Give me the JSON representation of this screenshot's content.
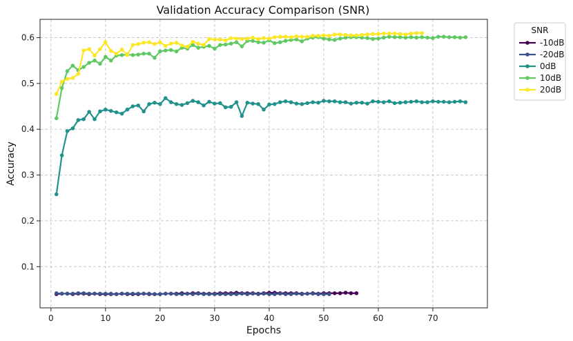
{
  "chart_data": {
    "type": "line",
    "title": "Validation Accuracy Comparison (SNR)",
    "xlabel": "Epochs",
    "ylabel": "Accuracy",
    "xlim": [
      -2,
      80
    ],
    "ylim": [
      0.01,
      0.64
    ],
    "x_ticks": [
      0,
      10,
      20,
      30,
      40,
      50,
      60,
      70
    ],
    "y_ticks": [
      0.1,
      0.2,
      0.3,
      0.4,
      0.5,
      0.6
    ],
    "x_tick_labels": [
      "0",
      "10",
      "20",
      "30",
      "40",
      "50",
      "60",
      "70"
    ],
    "y_tick_labels": [
      "0.1",
      "0.2",
      "0.3",
      "0.4",
      "0.5",
      "0.6"
    ],
    "grid": true,
    "legend_title": "SNR",
    "legend_position": "outside-right",
    "series": [
      {
        "name": "-10dB",
        "color": "#440154",
        "x": [
          1,
          2,
          3,
          4,
          5,
          6,
          7,
          8,
          9,
          10,
          11,
          12,
          13,
          14,
          15,
          16,
          17,
          18,
          19,
          20,
          21,
          22,
          23,
          24,
          25,
          26,
          27,
          28,
          29,
          30,
          31,
          32,
          33,
          34,
          35,
          36,
          37,
          38,
          39,
          40,
          41,
          42,
          43,
          44,
          45,
          46,
          47,
          48,
          49,
          50,
          51,
          52,
          53,
          54,
          55,
          56
        ],
        "y": [
          0.04,
          0.041,
          0.041,
          0.04,
          0.041,
          0.041,
          0.04,
          0.041,
          0.04,
          0.04,
          0.04,
          0.04,
          0.041,
          0.04,
          0.04,
          0.04,
          0.041,
          0.04,
          0.04,
          0.04,
          0.041,
          0.041,
          0.041,
          0.042,
          0.041,
          0.042,
          0.042,
          0.041,
          0.041,
          0.041,
          0.042,
          0.042,
          0.042,
          0.043,
          0.042,
          0.042,
          0.042,
          0.041,
          0.042,
          0.043,
          0.043,
          0.042,
          0.042,
          0.042,
          0.042,
          0.041,
          0.041,
          0.042,
          0.041,
          0.042,
          0.042,
          0.042,
          0.042,
          0.043,
          0.042,
          0.042
        ]
      },
      {
        "name": "-20dB",
        "color": "#3b528b",
        "x": [
          1,
          2,
          3,
          4,
          5,
          6,
          7,
          8,
          9,
          10,
          11,
          12,
          13,
          14,
          15,
          16,
          17,
          18,
          19,
          20,
          21,
          22,
          23,
          24,
          25,
          26,
          27,
          28,
          29,
          30,
          31,
          32,
          33,
          34,
          35,
          36,
          37,
          38,
          39,
          40,
          41,
          42,
          43,
          44,
          45,
          46,
          47,
          48,
          49,
          50,
          51
        ],
        "y": [
          0.042,
          0.041,
          0.041,
          0.041,
          0.042,
          0.042,
          0.041,
          0.041,
          0.041,
          0.041,
          0.041,
          0.04,
          0.041,
          0.041,
          0.041,
          0.041,
          0.041,
          0.041,
          0.04,
          0.04,
          0.041,
          0.041,
          0.04,
          0.04,
          0.041,
          0.04,
          0.041,
          0.04,
          0.04,
          0.04,
          0.04,
          0.04,
          0.04,
          0.04,
          0.041,
          0.04,
          0.041,
          0.04,
          0.041,
          0.04,
          0.04,
          0.041,
          0.04,
          0.04,
          0.041,
          0.04,
          0.041,
          0.041,
          0.04,
          0.04,
          0.04
        ]
      },
      {
        "name": "0dB",
        "color": "#21918c",
        "x": [
          1,
          2,
          3,
          4,
          5,
          6,
          7,
          8,
          9,
          10,
          11,
          12,
          13,
          14,
          15,
          16,
          17,
          18,
          19,
          20,
          21,
          22,
          23,
          24,
          25,
          26,
          27,
          28,
          29,
          30,
          31,
          32,
          33,
          34,
          35,
          36,
          37,
          38,
          39,
          40,
          41,
          42,
          43,
          44,
          45,
          46,
          47,
          48,
          49,
          50,
          51,
          52,
          53,
          54,
          55,
          56,
          57,
          58,
          59,
          60,
          61,
          62,
          63,
          64,
          65,
          66,
          67,
          68,
          69,
          70,
          71,
          72,
          73,
          74,
          75,
          76
        ],
        "y": [
          0.258,
          0.343,
          0.396,
          0.402,
          0.42,
          0.422,
          0.438,
          0.422,
          0.439,
          0.443,
          0.44,
          0.437,
          0.434,
          0.443,
          0.45,
          0.452,
          0.439,
          0.455,
          0.458,
          0.455,
          0.468,
          0.459,
          0.455,
          0.453,
          0.457,
          0.462,
          0.459,
          0.452,
          0.46,
          0.456,
          0.457,
          0.448,
          0.449,
          0.459,
          0.429,
          0.458,
          0.456,
          0.455,
          0.443,
          0.454,
          0.455,
          0.459,
          0.461,
          0.459,
          0.456,
          0.455,
          0.457,
          0.459,
          0.458,
          0.462,
          0.461,
          0.461,
          0.459,
          0.459,
          0.456,
          0.458,
          0.458,
          0.456,
          0.461,
          0.46,
          0.459,
          0.461,
          0.457,
          0.458,
          0.459,
          0.46,
          0.461,
          0.459,
          0.459,
          0.461,
          0.46,
          0.46,
          0.459,
          0.46,
          0.461,
          0.459
        ]
      },
      {
        "name": "10dB",
        "color": "#5ec962",
        "x": [
          1,
          2,
          3,
          4,
          5,
          6,
          7,
          8,
          9,
          10,
          11,
          12,
          13,
          14,
          15,
          16,
          17,
          18,
          19,
          20,
          21,
          22,
          23,
          24,
          25,
          26,
          27,
          28,
          29,
          30,
          31,
          32,
          33,
          34,
          35,
          36,
          37,
          38,
          39,
          40,
          41,
          42,
          43,
          44,
          45,
          46,
          47,
          48,
          49,
          50,
          51,
          52,
          53,
          54,
          55,
          56,
          57,
          58,
          59,
          60,
          61,
          62,
          63,
          64,
          65,
          66,
          67,
          68,
          69,
          70,
          71,
          72,
          73,
          74,
          75,
          76
        ],
        "y": [
          0.424,
          0.49,
          0.527,
          0.539,
          0.529,
          0.536,
          0.545,
          0.55,
          0.543,
          0.558,
          0.55,
          0.561,
          0.562,
          0.563,
          0.562,
          0.563,
          0.565,
          0.565,
          0.556,
          0.57,
          0.572,
          0.573,
          0.57,
          0.578,
          0.576,
          0.584,
          0.578,
          0.58,
          0.582,
          0.576,
          0.584,
          0.585,
          0.587,
          0.59,
          0.581,
          0.593,
          0.593,
          0.59,
          0.589,
          0.594,
          0.588,
          0.59,
          0.593,
          0.595,
          0.596,
          0.592,
          0.598,
          0.6,
          0.601,
          0.598,
          0.596,
          0.595,
          0.598,
          0.6,
          0.601,
          0.601,
          0.6,
          0.599,
          0.597,
          0.598,
          0.6,
          0.602,
          0.601,
          0.601,
          0.6,
          0.601,
          0.6,
          0.601,
          0.6,
          0.599,
          0.602,
          0.602,
          0.601,
          0.601,
          0.6,
          0.601
        ]
      },
      {
        "name": "20dB",
        "color": "#fde725",
        "x": [
          1,
          2,
          3,
          4,
          5,
          6,
          7,
          8,
          9,
          10,
          11,
          12,
          13,
          14,
          15,
          16,
          17,
          18,
          19,
          20,
          21,
          22,
          23,
          24,
          25,
          26,
          27,
          28,
          29,
          30,
          31,
          32,
          33,
          34,
          35,
          36,
          37,
          38,
          39,
          40,
          41,
          42,
          43,
          44,
          45,
          46,
          47,
          48,
          49,
          50,
          51,
          52,
          53,
          54,
          55,
          56,
          57,
          58,
          59,
          60,
          61,
          62,
          63,
          64,
          65,
          66,
          67,
          68
        ],
        "y": [
          0.477,
          0.504,
          0.51,
          0.512,
          0.521,
          0.572,
          0.575,
          0.561,
          0.575,
          0.59,
          0.571,
          0.565,
          0.574,
          0.562,
          0.584,
          0.586,
          0.589,
          0.59,
          0.586,
          0.59,
          0.582,
          0.587,
          0.589,
          0.583,
          0.58,
          0.591,
          0.587,
          0.584,
          0.597,
          0.596,
          0.596,
          0.594,
          0.599,
          0.598,
          0.597,
          0.598,
          0.6,
          0.597,
          0.599,
          0.598,
          0.601,
          0.602,
          0.602,
          0.601,
          0.603,
          0.602,
          0.602,
          0.604,
          0.604,
          0.605,
          0.604,
          0.607,
          0.607,
          0.606,
          0.605,
          0.605,
          0.606,
          0.607,
          0.608,
          0.608,
          0.609,
          0.609,
          0.609,
          0.608,
          0.607,
          0.609,
          0.61,
          0.61
        ]
      }
    ]
  }
}
